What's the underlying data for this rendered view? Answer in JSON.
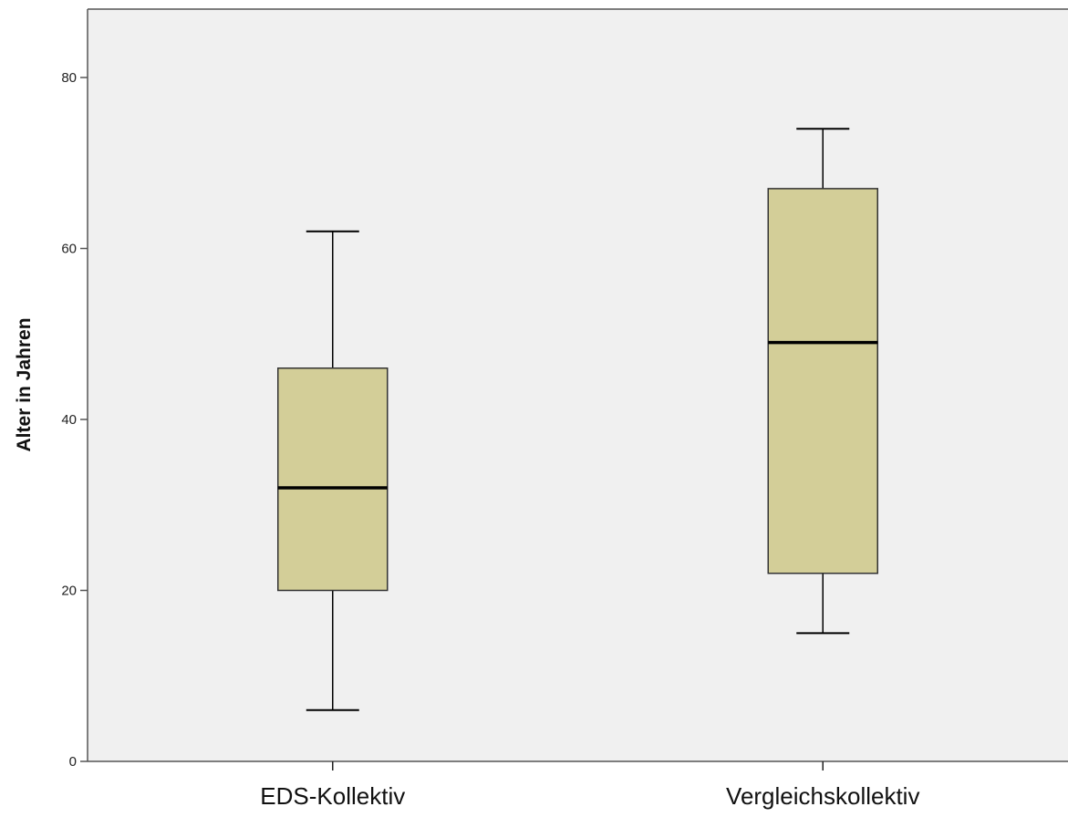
{
  "chart_data": {
    "type": "boxplot",
    "title": "",
    "xlabel": "",
    "ylabel": "Alter in Jahren",
    "ylim": [
      0,
      88
    ],
    "yticks": [
      0,
      20,
      40,
      60,
      80
    ],
    "grid": false,
    "categories": [
      "EDS-Kollektiv",
      "Vergleichskollektiv"
    ],
    "boxes": [
      {
        "category": "EDS-Kollektiv",
        "min": 6,
        "q1": 20,
        "median": 32,
        "q3": 46,
        "max": 62
      },
      {
        "category": "Vergleichskollektiv",
        "min": 15,
        "q1": 22,
        "median": 49,
        "q3": 67,
        "max": 74
      }
    ],
    "colors": {
      "plot_background": "#f0f0f0",
      "box_fill": "#d3ce98",
      "stroke": "#000000"
    }
  }
}
